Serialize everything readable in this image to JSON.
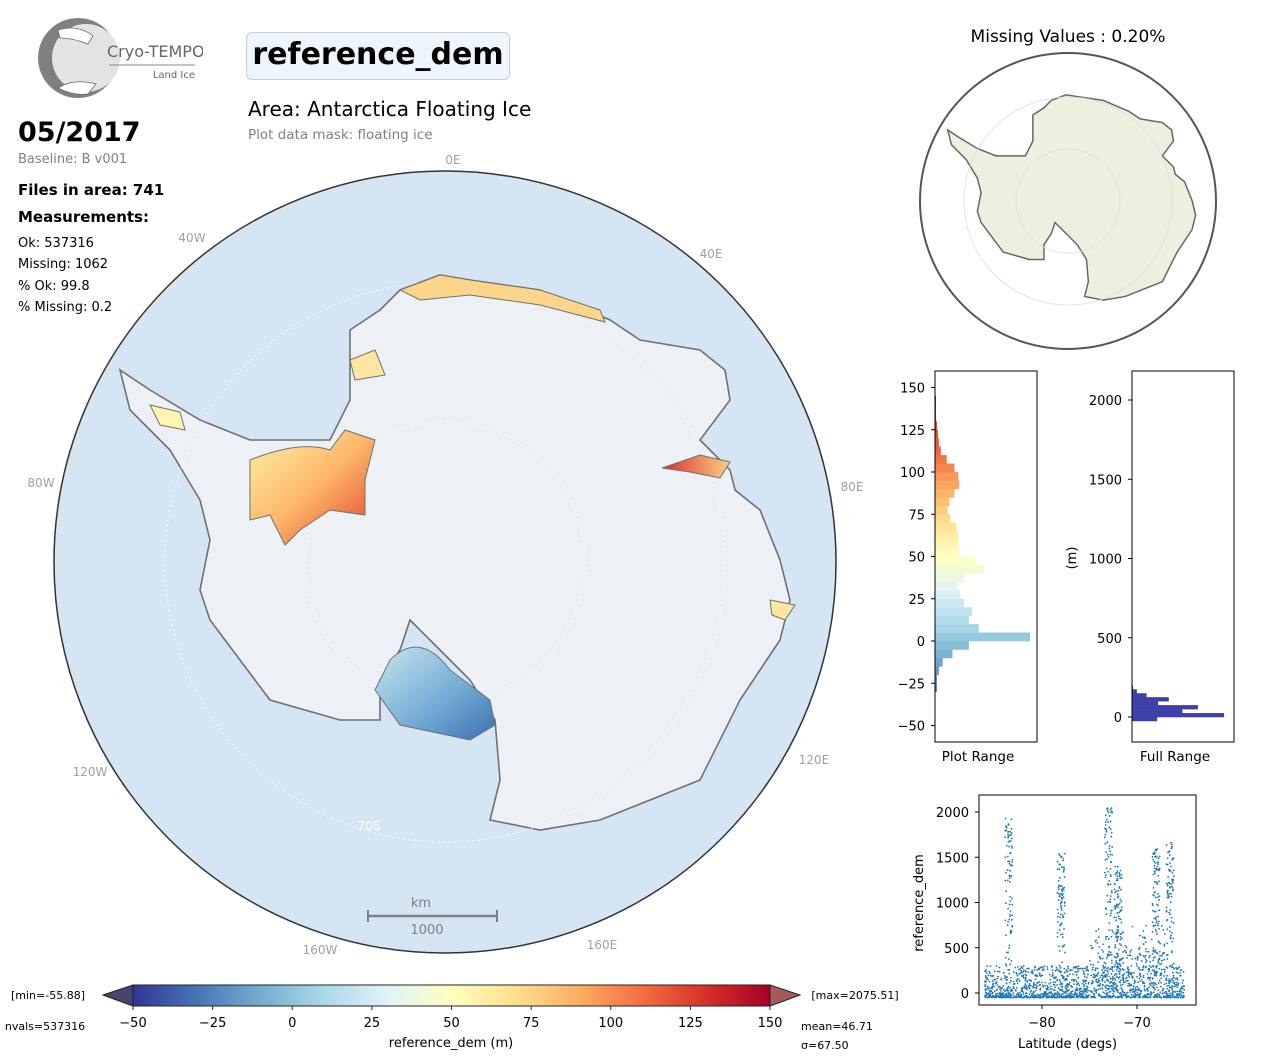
{
  "logo": {
    "name": "Cryo-TEMPO",
    "subtitle": "Land Ice"
  },
  "header": {
    "parameter": "reference_dem",
    "area": "Area: Antarctica Floating Ice",
    "mask": "Plot data mask: floating ice",
    "date": "05/2017",
    "baseline": "Baseline: B v001",
    "files": "Files in area: 741",
    "measurements_title": "Measurements:",
    "stats": [
      "Ok: 537316",
      "Missing: 1062",
      "% Ok: 99.8",
      "% Missing: 0.2"
    ]
  },
  "map": {
    "labels": {
      "lon_0E": "0E",
      "lon_40W": "40W",
      "lon_40E": "40E",
      "lon_80W": "80W",
      "lon_80E": "80E",
      "lon_120W": "120W",
      "lon_120E": "120E",
      "lon_160W": "160W",
      "lon_160E": "160E",
      "lat_70S": "70S"
    },
    "scalebar": {
      "unit": "km",
      "value": "1000"
    },
    "colors": {
      "ocean": "#d5e5f4",
      "land": "#eef2f7",
      "coast": "#707070"
    }
  },
  "inset": {
    "title": "Missing Values : 0.20%",
    "colors": {
      "land": "#efefdf",
      "ocean": "#ffffff"
    }
  },
  "colorbar": {
    "min_label": "[min=-55.88]",
    "max_label": "[max=2075.51]",
    "nvals": "nvals=537316",
    "mean": "mean=46.71",
    "sigma": "σ=67.50",
    "label": "reference_dem (m)",
    "ticks": [
      "−50",
      "−25",
      "0",
      "25",
      "50",
      "75",
      "100",
      "125",
      "150"
    ],
    "range": [
      -50,
      150
    ],
    "colormap": [
      "#313695",
      "#4575b4",
      "#74add1",
      "#abd9e9",
      "#e0f3f8",
      "#ffffbf",
      "#fee090",
      "#fdae61",
      "#f46d43",
      "#d73027",
      "#a50026"
    ]
  },
  "chart_data": [
    {
      "type": "bar",
      "title": "Plot Range",
      "orientation": "horizontal",
      "ylim": [
        -60,
        160
      ],
      "ytick_labels": [
        "−50",
        "−25",
        "0",
        "25",
        "50",
        "75",
        "100",
        "125",
        "150"
      ],
      "yticks": [
        -50,
        -25,
        0,
        25,
        50,
        75,
        100,
        125,
        150
      ],
      "bin_start": -30,
      "bin_width": 5,
      "relative_counts": [
        0.02,
        0.02,
        0.04,
        0.08,
        0.18,
        0.35,
        0.98,
        0.45,
        0.35,
        0.38,
        0.3,
        0.26,
        0.23,
        0.3,
        0.5,
        0.42,
        0.25,
        0.24,
        0.24,
        0.22,
        0.16,
        0.13,
        0.15,
        0.2,
        0.25,
        0.24,
        0.2,
        0.12,
        0.06,
        0.04,
        0.03,
        0.02,
        0.01,
        0.01,
        0.01
      ]
    },
    {
      "type": "bar",
      "title": "Full Range",
      "orientation": "horizontal",
      "ylabel": "(m)",
      "ylim": [
        -120,
        2200
      ],
      "ytick_labels": [
        "0",
        "500",
        "1000",
        "1500",
        "2000"
      ],
      "yticks": [
        0,
        500,
        1000,
        1500,
        2000
      ],
      "bin_start": -25,
      "bin_width": 25,
      "relative_counts": [
        0.26,
        0.95,
        0.52,
        0.68,
        0.27,
        0.38,
        0.15,
        0.05,
        0.01
      ],
      "color": "#3f3fa8"
    },
    {
      "type": "scatter",
      "xlabel": "Latitude (degs)",
      "ylabel": "reference_dem",
      "xlim": [
        -87,
        -64
      ],
      "ylim": [
        -100,
        2150
      ],
      "xtick_labels": [
        "−80",
        "−70"
      ],
      "xticks": [
        -80,
        -70
      ],
      "ytick_labels": [
        "0",
        "500",
        "1000",
        "1500",
        "2000"
      ],
      "yticks": [
        0,
        500,
        1000,
        1500,
        2000
      ],
      "x_range": [
        -86,
        -65
      ],
      "dense_band": [
        -50,
        300
      ],
      "spikes": [
        {
          "x": -83.5,
          "y": 1950
        },
        {
          "x": -78,
          "y": 1550
        },
        {
          "x": -73,
          "y": 2050
        },
        {
          "x": -66.5,
          "y": 1700
        },
        {
          "x": -72,
          "y": 1400
        },
        {
          "x": -68,
          "y": 1600
        }
      ],
      "color": "#1f77b4"
    }
  ]
}
